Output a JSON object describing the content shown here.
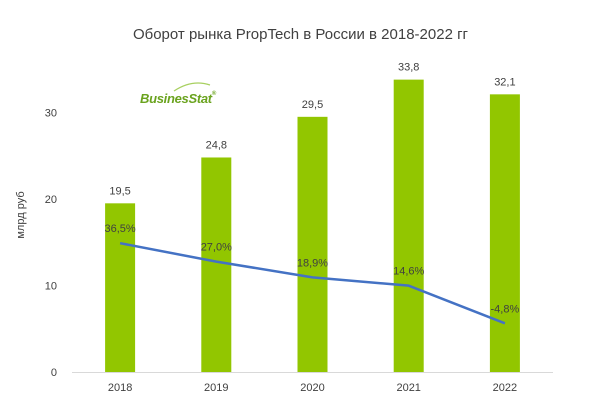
{
  "title": "Оборот рынка PropTech в России в 2018-2022 гг",
  "logo": {
    "text": "BusinesStat",
    "mark": "®"
  },
  "colors": {
    "bar": "#92c600",
    "line": "#4472c4",
    "text": "#404040",
    "axis": "#d9d9d9"
  },
  "chart_data": {
    "type": "bar",
    "title": "Оборот рынка PropTech в России в 2018-2022 гг",
    "categories": [
      "2018",
      "2019",
      "2020",
      "2021",
      "2022"
    ],
    "ylabel": "млрд руб",
    "ylim": [
      0,
      36
    ],
    "yticks": [
      0,
      10,
      20,
      30
    ],
    "grid": false,
    "series": [
      {
        "type": "bar",
        "values": [
          19.5,
          24.8,
          29.5,
          33.8,
          32.1
        ],
        "labels": [
          "19,5",
          "24,8",
          "29,5",
          "33,8",
          "32,1"
        ]
      },
      {
        "type": "line",
        "axis": "secondary",
        "values": [
          36.5,
          27.0,
          18.9,
          14.6,
          -4.8
        ],
        "labels": [
          "36,5%",
          "27,0%",
          "18,9%",
          "14,6%",
          "-4,8%"
        ]
      }
    ]
  }
}
